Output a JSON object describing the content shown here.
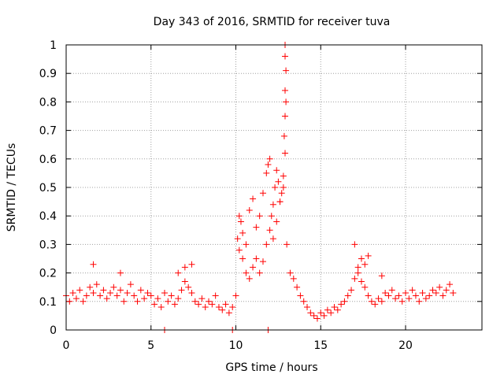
{
  "chart_data": {
    "type": "scatter",
    "title": "Day 343 of 2016, SRMTID for receiver tuva",
    "xlabel": "GPS time / hours",
    "ylabel": "SRMTID / TECUs",
    "xlim": [
      0,
      24.5
    ],
    "ylim": [
      0,
      1
    ],
    "xticks": [
      0,
      5,
      10,
      15,
      20
    ],
    "xtick_labels": [
      "0",
      "5",
      "10",
      "15",
      "20"
    ],
    "yticks": [
      0,
      0.1,
      0.2,
      0.3,
      0.4,
      0.5,
      0.6,
      0.7,
      0.8,
      0.9,
      1
    ],
    "ytick_labels": [
      "0",
      "0.1",
      "0.2",
      "0.3",
      "0.4",
      "0.5",
      "0.6",
      "0.7",
      "0.8",
      "0.9",
      "1"
    ],
    "grid": true,
    "marker": "plus",
    "marker_color": "#ff0000",
    "series": [
      {
        "name": "SRMTID",
        "x": [
          0.0,
          0.2,
          0.4,
          0.6,
          0.8,
          1.0,
          1.2,
          1.4,
          1.6,
          1.8,
          2.0,
          2.2,
          2.4,
          2.6,
          2.8,
          3.0,
          3.2,
          3.4,
          3.6,
          3.8,
          4.0,
          4.2,
          4.4,
          4.6,
          4.8,
          5.0,
          5.2,
          5.4,
          5.6,
          5.8,
          6.0,
          6.2,
          6.4,
          6.6,
          6.8,
          7.0,
          7.2,
          7.4,
          7.6,
          7.8,
          8.0,
          8.2,
          8.4,
          8.6,
          8.8,
          9.0,
          9.2,
          9.4,
          9.6,
          9.8,
          10.0,
          10.2,
          10.4,
          10.6,
          10.8,
          11.0,
          11.2,
          11.4,
          11.6,
          11.8,
          12.0,
          12.2,
          12.4,
          12.6,
          12.8,
          13.0,
          13.2,
          13.4,
          13.6,
          13.8,
          14.0,
          14.2,
          14.4,
          14.6,
          14.8,
          15.0,
          15.2,
          15.4,
          15.6,
          15.8,
          16.0,
          16.2,
          16.4,
          16.6,
          16.8,
          17.0,
          17.2,
          17.4,
          17.6,
          17.8,
          18.0,
          18.2,
          18.4,
          18.6,
          18.8,
          19.0,
          19.2,
          19.4,
          19.6,
          19.8,
          20.0,
          20.2,
          20.4,
          20.6,
          20.8,
          21.0,
          21.2,
          21.4,
          21.6,
          21.8,
          22.0,
          22.2,
          22.4,
          22.6,
          22.8,
          5.8,
          9.8,
          11.9,
          12.9,
          12.9,
          12.95,
          12.9,
          12.95,
          12.9,
          12.85,
          12.9,
          12.8,
          12.7,
          12.6,
          12.5,
          12.4,
          12.3,
          12.2,
          12.1,
          12.0,
          11.9,
          11.8,
          11.6,
          11.4,
          11.2,
          11.0,
          10.8,
          10.6,
          10.4,
          10.3,
          10.2,
          10.1,
          17.0,
          17.2,
          17.4,
          17.6,
          17.8,
          18.6,
          7.0,
          7.4,
          6.6,
          3.2,
          1.6
        ],
        "y": [
          0.12,
          0.1,
          0.13,
          0.11,
          0.14,
          0.1,
          0.12,
          0.15,
          0.13,
          0.16,
          0.12,
          0.14,
          0.11,
          0.13,
          0.15,
          0.12,
          0.14,
          0.1,
          0.13,
          0.16,
          0.12,
          0.1,
          0.14,
          0.11,
          0.13,
          0.12,
          0.09,
          0.11,
          0.08,
          0.13,
          0.1,
          0.12,
          0.09,
          0.11,
          0.14,
          0.17,
          0.15,
          0.13,
          0.1,
          0.09,
          0.11,
          0.08,
          0.1,
          0.09,
          0.12,
          0.08,
          0.07,
          0.09,
          0.06,
          0.08,
          0.12,
          0.28,
          0.25,
          0.2,
          0.18,
          0.22,
          0.25,
          0.2,
          0.24,
          0.3,
          0.35,
          0.32,
          0.38,
          0.45,
          0.5,
          0.3,
          0.2,
          0.18,
          0.15,
          0.12,
          0.1,
          0.08,
          0.06,
          0.05,
          0.04,
          0.06,
          0.05,
          0.07,
          0.06,
          0.08,
          0.07,
          0.09,
          0.1,
          0.12,
          0.14,
          0.18,
          0.2,
          0.17,
          0.15,
          0.12,
          0.1,
          0.09,
          0.11,
          0.1,
          0.13,
          0.12,
          0.14,
          0.11,
          0.12,
          0.1,
          0.13,
          0.11,
          0.14,
          0.12,
          0.1,
          0.13,
          0.11,
          0.12,
          0.14,
          0.13,
          0.15,
          0.12,
          0.14,
          0.16,
          0.13,
          0.0,
          0.0,
          0.0,
          1.0,
          0.96,
          0.91,
          0.84,
          0.8,
          0.75,
          0.68,
          0.62,
          0.54,
          0.48,
          0.45,
          0.52,
          0.56,
          0.5,
          0.44,
          0.4,
          0.6,
          0.58,
          0.55,
          0.48,
          0.4,
          0.36,
          0.46,
          0.42,
          0.3,
          0.34,
          0.38,
          0.4,
          0.32,
          0.3,
          0.22,
          0.25,
          0.23,
          0.26,
          0.19,
          0.22,
          0.23,
          0.2,
          0.2,
          0.23
        ]
      }
    ]
  }
}
